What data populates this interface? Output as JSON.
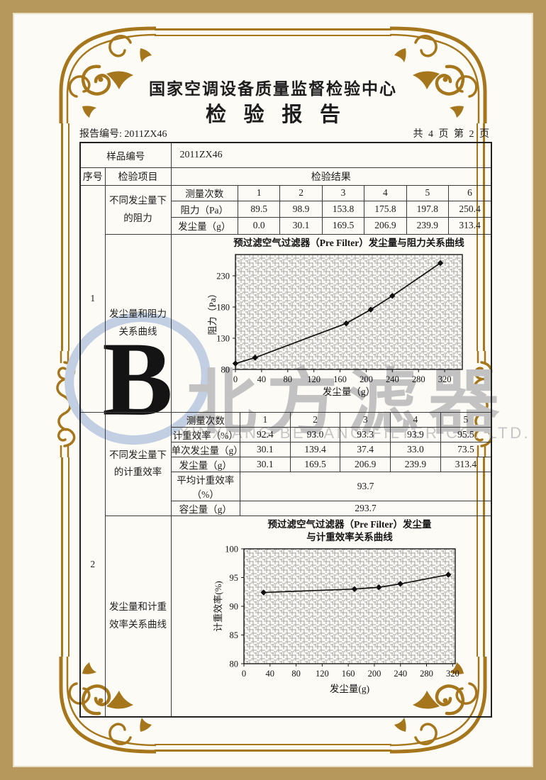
{
  "report": {
    "center_name": "国家空调设备质量监督检验中心",
    "title": "检验报告",
    "no_label": "报告编号:",
    "no_value": "2011ZX46",
    "page_info": "共 4 页 第 2 页"
  },
  "table": {
    "sample_label": "样品编号",
    "sample_value": "2011ZX46",
    "head": {
      "seq": "序号",
      "item": "检验项目",
      "result": "检验结果"
    },
    "s1": {
      "seq": "1",
      "item_top": "不同发尘量下的阻力",
      "item_bottom": "发尘量和阻力关系曲线",
      "rows": [
        [
          "测量次数",
          "1",
          "2",
          "3",
          "4",
          "5",
          "6"
        ],
        [
          "阻力（Pa）",
          "89.5",
          "98.9",
          "153.8",
          "175.8",
          "197.8",
          "250.4"
        ],
        [
          "发尘量（g）",
          "0.0",
          "30.1",
          "169.5",
          "206.9",
          "239.9",
          "313.4"
        ]
      ]
    },
    "s2": {
      "seq": "2",
      "item_top": "不同发尘量下的计重效率",
      "item_bottom": "发尘量和计重效率关系曲线",
      "rows": [
        [
          "测量次数",
          "1",
          "2",
          "3",
          "4",
          "5"
        ],
        [
          "计重效率（%）",
          "92.4",
          "93.0",
          "93.3",
          "93.9",
          "95.5"
        ],
        [
          "单次发尘量（g）",
          "30.1",
          "139.4",
          "37.4",
          "33.0",
          "73.5"
        ],
        [
          "发尘量（g）",
          "30.1",
          "169.5",
          "206.9",
          "239.9",
          "313.4"
        ]
      ],
      "avg_label": "平均计重效率（%）",
      "avg_value": "93.7",
      "cap_label": "容尘量（g）",
      "cap_value": "293.7"
    }
  },
  "watermark": {
    "logo_letter": "B",
    "cn": "北方滤器",
    "en": "XINXIANG BEIFANG FILTER CO. LTD."
  },
  "chart_data": [
    {
      "type": "line",
      "title": "预过滤空气过滤器（Pre Filter）发尘量与阻力关系曲线",
      "xlabel": "发尘量（g）",
      "ylabel": "阻力（Pa）",
      "x": [
        0,
        30.1,
        169.5,
        206.9,
        239.9,
        313.4
      ],
      "y": [
        89.5,
        98.9,
        153.8,
        175.8,
        197.8,
        250.4
      ],
      "xlim": [
        0,
        347
      ],
      "ylim": [
        80,
        264
      ],
      "xticks": [
        0,
        40,
        80,
        120,
        160,
        200,
        240,
        280,
        320
      ],
      "yticks": [
        80,
        130,
        180,
        230
      ],
      "grid": true,
      "marker": "diamond",
      "legend": "none"
    },
    {
      "type": "line",
      "title": "预过滤空气过滤器（Pre Filter）发尘量\n与计重效率关系曲线",
      "xlabel": "发尘量(g)",
      "ylabel": "计重效率(%)",
      "x": [
        30.1,
        169.5,
        206.9,
        239.9,
        313.4
      ],
      "y": [
        92.4,
        93.0,
        93.3,
        93.9,
        95.5
      ],
      "xlim": [
        0,
        324
      ],
      "ylim": [
        80,
        100
      ],
      "xticks": [
        0,
        40,
        80,
        120,
        160,
        200,
        240,
        280,
        320
      ],
      "yticks": [
        80,
        85,
        90,
        95,
        100
      ],
      "grid": true,
      "marker": "diamond",
      "legend": "none"
    }
  ],
  "colors": {
    "frame_tan": "#b6985c",
    "frame_gold": "#a6761d",
    "ink": "#1d1d1d",
    "watermark_blue": "#c2cfe3",
    "watermark_gray": "#c2c2c2",
    "hatch": "#a3a3a3",
    "paper": "#fdfbf5"
  }
}
